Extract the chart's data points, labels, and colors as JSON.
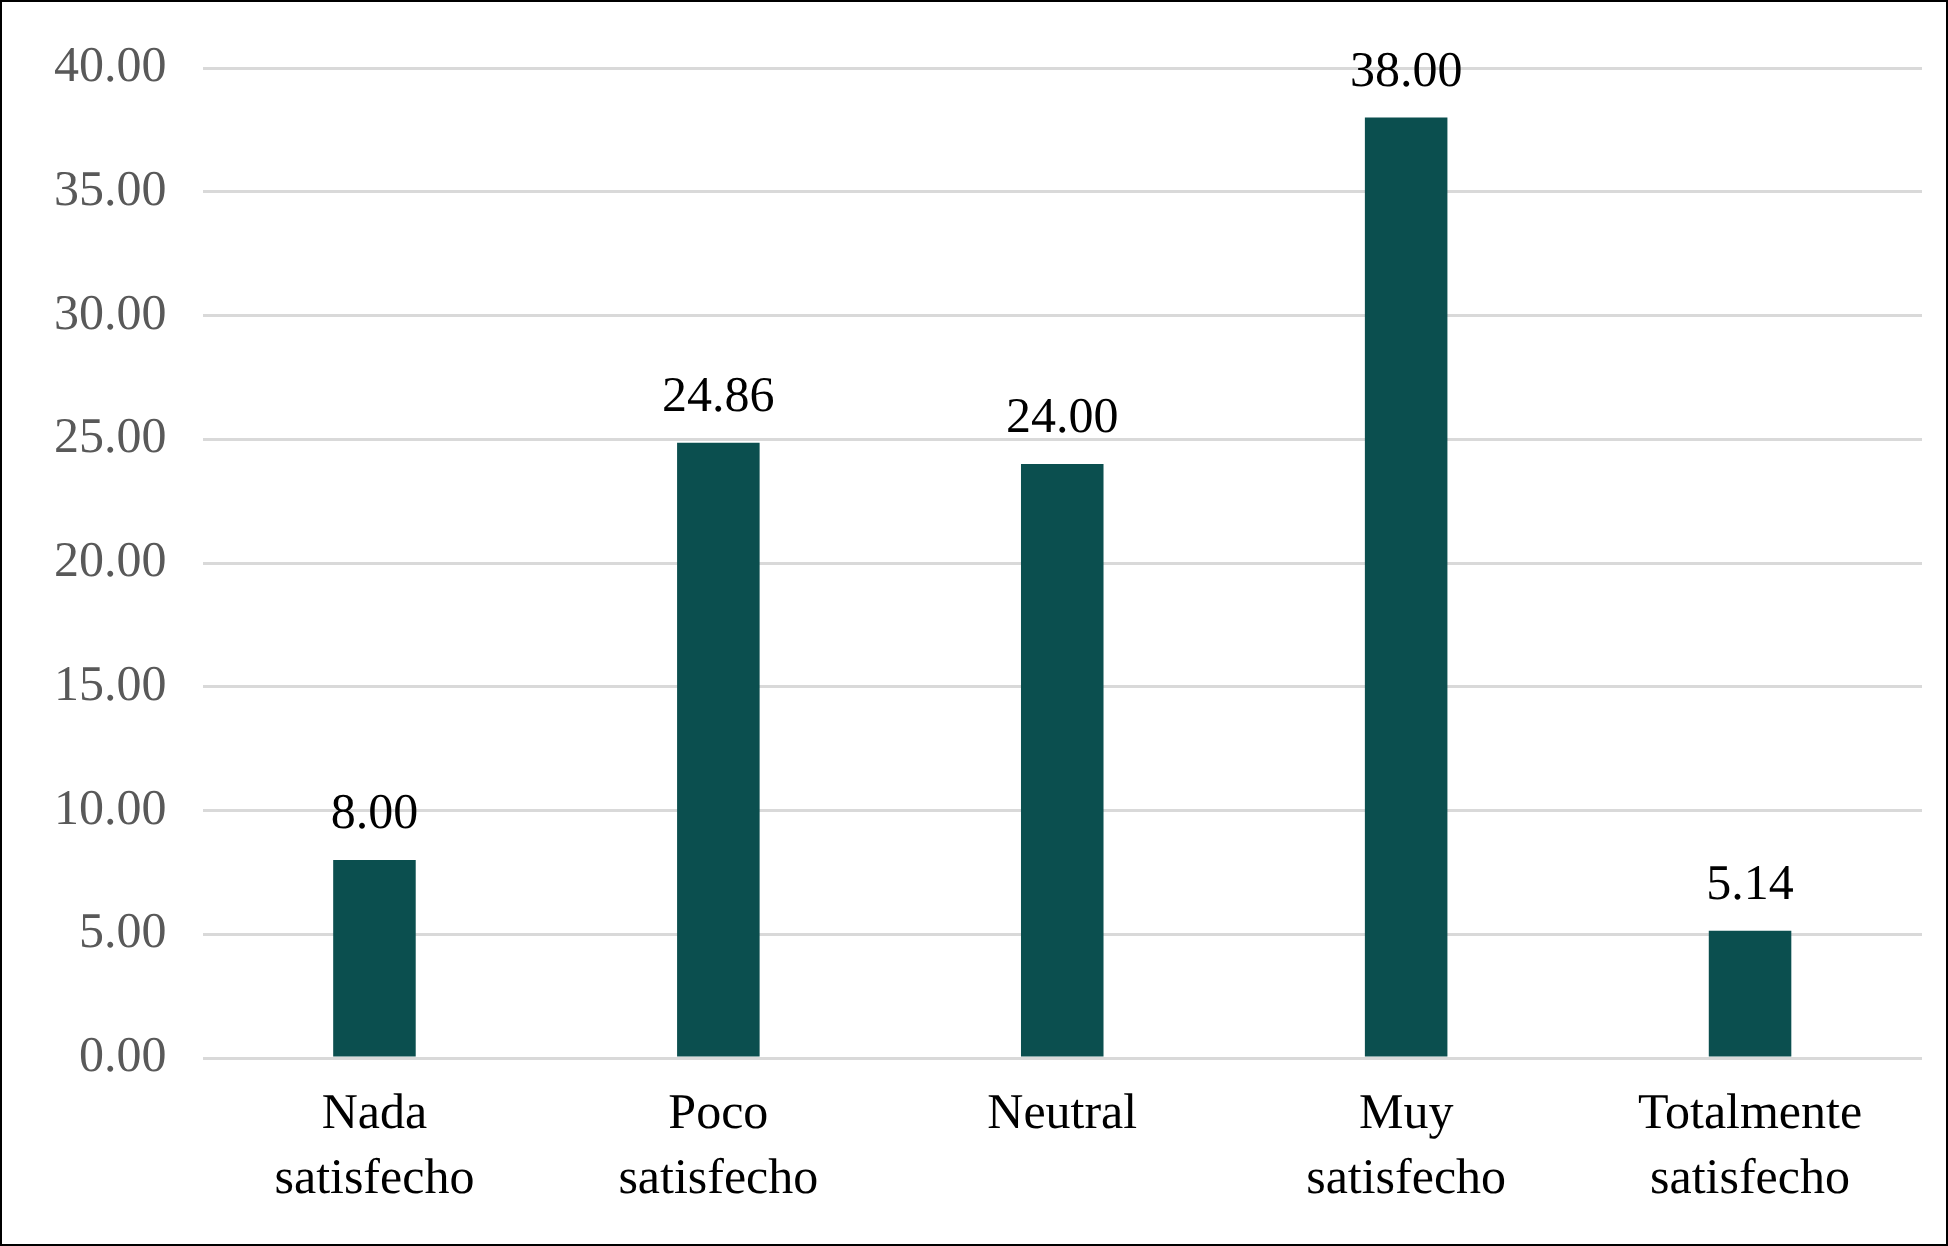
{
  "chart_data": {
    "type": "bar",
    "categories": [
      "Nada satisfecho",
      "Poco satisfecho",
      "Neutral",
      "Muy satisfecho",
      "Totalmente satisfecho"
    ],
    "values": [
      8.0,
      24.86,
      24.0,
      38.0,
      5.14
    ],
    "value_labels": [
      "8.00",
      "24.86",
      "24.00",
      "38.00",
      "5.14"
    ],
    "color": "#0b4f4f",
    "ylim": [
      0,
      40
    ],
    "yticks": [
      {
        "value": 0,
        "label": "0.00"
      },
      {
        "value": 5,
        "label": "5.00"
      },
      {
        "value": 10,
        "label": "10.00"
      },
      {
        "value": 15,
        "label": "15.00"
      },
      {
        "value": 20,
        "label": "20.00"
      },
      {
        "value": 25,
        "label": "25.00"
      },
      {
        "value": 30,
        "label": "30.00"
      },
      {
        "value": 35,
        "label": "35.00"
      },
      {
        "value": 40,
        "label": "40.00"
      }
    ],
    "grid": "y",
    "legend": false
  }
}
